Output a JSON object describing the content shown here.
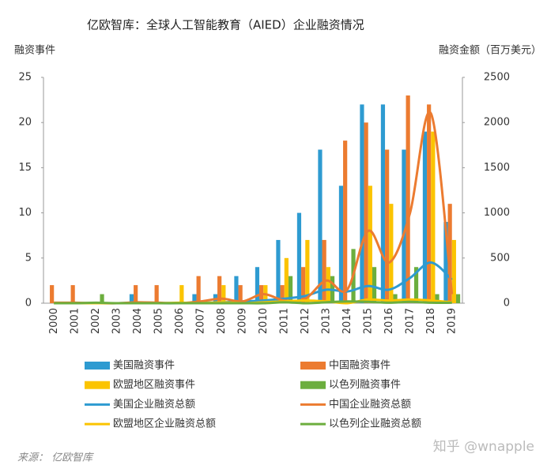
{
  "chart_data": {
    "type": "bar",
    "title": "亿欧智库：全球人工智能教育（AIED）企业融资情况",
    "y_label": "融资事件",
    "y2_label": "融资金额（百万美元）",
    "source": "来源： 亿欧智库",
    "watermark": "知乎 @wnapple",
    "categories": [
      "2000",
      "2001",
      "2002",
      "2003",
      "2004",
      "2005",
      "2006",
      "2007",
      "2008",
      "2009",
      "2010",
      "2011",
      "2012",
      "2013",
      "2014",
      "2015",
      "2016",
      "2017",
      "2018",
      "2019"
    ],
    "ylim": [
      0,
      25
    ],
    "yticks": [
      0,
      5,
      10,
      15,
      20,
      25
    ],
    "y2lim": [
      0,
      2500
    ],
    "y2ticks": [
      0,
      500,
      1000,
      1500,
      2000,
      2500
    ],
    "series": [
      {
        "name": "美国融资事件",
        "type": "bar",
        "color": "#2e9bd1",
        "values": [
          0,
          0,
          0,
          0,
          1,
          0,
          0,
          1,
          1,
          3,
          4,
          7,
          10,
          17,
          13,
          22,
          22,
          17,
          19,
          9
        ]
      },
      {
        "name": "中国融资事件",
        "type": "bar",
        "color": "#ec7b30",
        "values": [
          2,
          2,
          0,
          0,
          2,
          2,
          0,
          3,
          3,
          2,
          2,
          2,
          4,
          7,
          18,
          20,
          17,
          23,
          22,
          11
        ]
      },
      {
        "name": "欧盟地区融资事件",
        "type": "bar",
        "color": "#fbc400",
        "values": [
          0,
          0,
          0,
          0,
          0,
          0,
          2,
          0,
          2,
          0,
          2,
          5,
          7,
          4,
          0,
          13,
          11,
          0,
          19,
          7
        ]
      },
      {
        "name": "以色列融资事件",
        "type": "bar",
        "color": "#6cae3e",
        "values": [
          0,
          0,
          1,
          0,
          0,
          0,
          0,
          0,
          0,
          0,
          0,
          3,
          0,
          3,
          6,
          4,
          1,
          4,
          1,
          1
        ]
      },
      {
        "name": "美国企业融资总额",
        "type": "line",
        "axis": "y2",
        "color": "#2e9bd1",
        "values": [
          0,
          0,
          0,
          0,
          5,
          0,
          0,
          5,
          10,
          20,
          30,
          50,
          80,
          150,
          130,
          190,
          150,
          280,
          450,
          260
        ]
      },
      {
        "name": "中国企业融资总额",
        "type": "line",
        "axis": "y2",
        "color": "#ec7b30",
        "values": [
          5,
          5,
          0,
          0,
          10,
          5,
          0,
          20,
          50,
          20,
          100,
          30,
          50,
          250,
          150,
          800,
          450,
          1000,
          2100,
          100
        ]
      },
      {
        "name": "欧盟地区企业融资总额",
        "type": "line",
        "axis": "y2",
        "color": "#fbc400",
        "values": [
          0,
          0,
          0,
          0,
          0,
          0,
          5,
          0,
          10,
          0,
          10,
          20,
          30,
          20,
          0,
          40,
          30,
          40,
          30,
          10
        ]
      },
      {
        "name": "以色列企业融资总额",
        "type": "line",
        "axis": "y2",
        "color": "#6cae3e",
        "values": [
          0,
          0,
          5,
          0,
          0,
          0,
          0,
          0,
          0,
          0,
          0,
          10,
          0,
          10,
          20,
          15,
          5,
          15,
          5,
          5
        ]
      }
    ]
  }
}
